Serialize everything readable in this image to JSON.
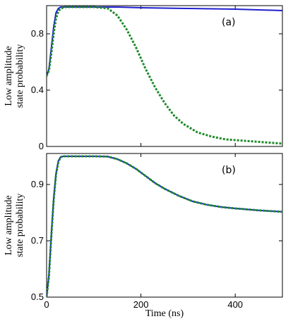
{
  "chart_data": [
    {
      "type": "line",
      "panel_label": "(a)",
      "ylabel_lines": [
        "Low amplitude",
        "state probability"
      ],
      "xlim": [
        0,
        500
      ],
      "ylim": [
        0,
        1.0
      ],
      "x_ticks": [
        0,
        200,
        400
      ],
      "y_ticks": [
        0,
        0.4,
        0.8
      ],
      "y_tick_labels": [
        "0",
        "0.4",
        "0.8"
      ],
      "x_tick_labels_shown": false,
      "series": [
        {
          "style": "solid",
          "color": "#1f1fd0",
          "x": [
            0,
            5,
            10,
            15,
            20,
            25,
            30,
            40,
            60,
            100,
            150,
            200,
            300,
            400,
            500
          ],
          "y": [
            0.5,
            0.55,
            0.7,
            0.85,
            0.95,
            0.98,
            0.99,
            0.99,
            0.99,
            0.99,
            0.99,
            0.985,
            0.98,
            0.975,
            0.965
          ]
        },
        {
          "style": "dashed",
          "color": "#1f8a2a",
          "x": [
            0,
            5,
            10,
            15,
            20,
            25,
            30,
            40,
            60,
            100,
            130,
            150,
            170,
            190,
            210,
            230,
            250,
            270,
            290,
            320,
            350,
            380,
            420,
            460,
            500
          ],
          "y": [
            0.5,
            0.54,
            0.66,
            0.8,
            0.91,
            0.96,
            0.98,
            0.99,
            0.99,
            0.99,
            0.98,
            0.93,
            0.83,
            0.7,
            0.55,
            0.42,
            0.31,
            0.22,
            0.16,
            0.1,
            0.07,
            0.05,
            0.04,
            0.03,
            0.02
          ]
        }
      ]
    },
    {
      "type": "line",
      "panel_label": "(b)",
      "ylabel_lines": [
        "Low amplitude",
        "state probability"
      ],
      "xlabel": "Time (ns)",
      "xlim": [
        0,
        500
      ],
      "ylim": [
        0.5,
        1.01
      ],
      "x_ticks": [
        0,
        200,
        400
      ],
      "x_tick_labels": [
        "0",
        "200",
        "400"
      ],
      "y_ticks": [
        0.5,
        0.7,
        0.9
      ],
      "y_tick_labels": [
        "0.5",
        "0.7",
        "0.9"
      ],
      "series": [
        {
          "style": "solid",
          "color": "#1f1fd0",
          "x": [
            0,
            5,
            10,
            15,
            20,
            25,
            30,
            35,
            40,
            60,
            100,
            130,
            150,
            170,
            190,
            210,
            230,
            250,
            280,
            310,
            340,
            370,
            400,
            450,
            500
          ],
          "y": [
            0.5,
            0.58,
            0.72,
            0.85,
            0.94,
            0.985,
            0.998,
            1.0,
            1.0,
            1.0,
            1.0,
            0.999,
            0.99,
            0.975,
            0.955,
            0.93,
            0.905,
            0.885,
            0.86,
            0.84,
            0.828,
            0.82,
            0.815,
            0.808,
            0.803
          ]
        },
        {
          "style": "dashed",
          "color": "#1f8a2a",
          "x": [
            0,
            5,
            10,
            15,
            20,
            25,
            30,
            35,
            40,
            60,
            100,
            130,
            150,
            170,
            190,
            210,
            230,
            250,
            280,
            310,
            340,
            370,
            400,
            450,
            500
          ],
          "y": [
            0.5,
            0.575,
            0.715,
            0.845,
            0.935,
            0.98,
            0.997,
            1.0,
            1.0,
            1.0,
            1.0,
            0.999,
            0.99,
            0.975,
            0.955,
            0.93,
            0.905,
            0.885,
            0.86,
            0.84,
            0.828,
            0.82,
            0.815,
            0.808,
            0.803
          ]
        }
      ]
    }
  ]
}
